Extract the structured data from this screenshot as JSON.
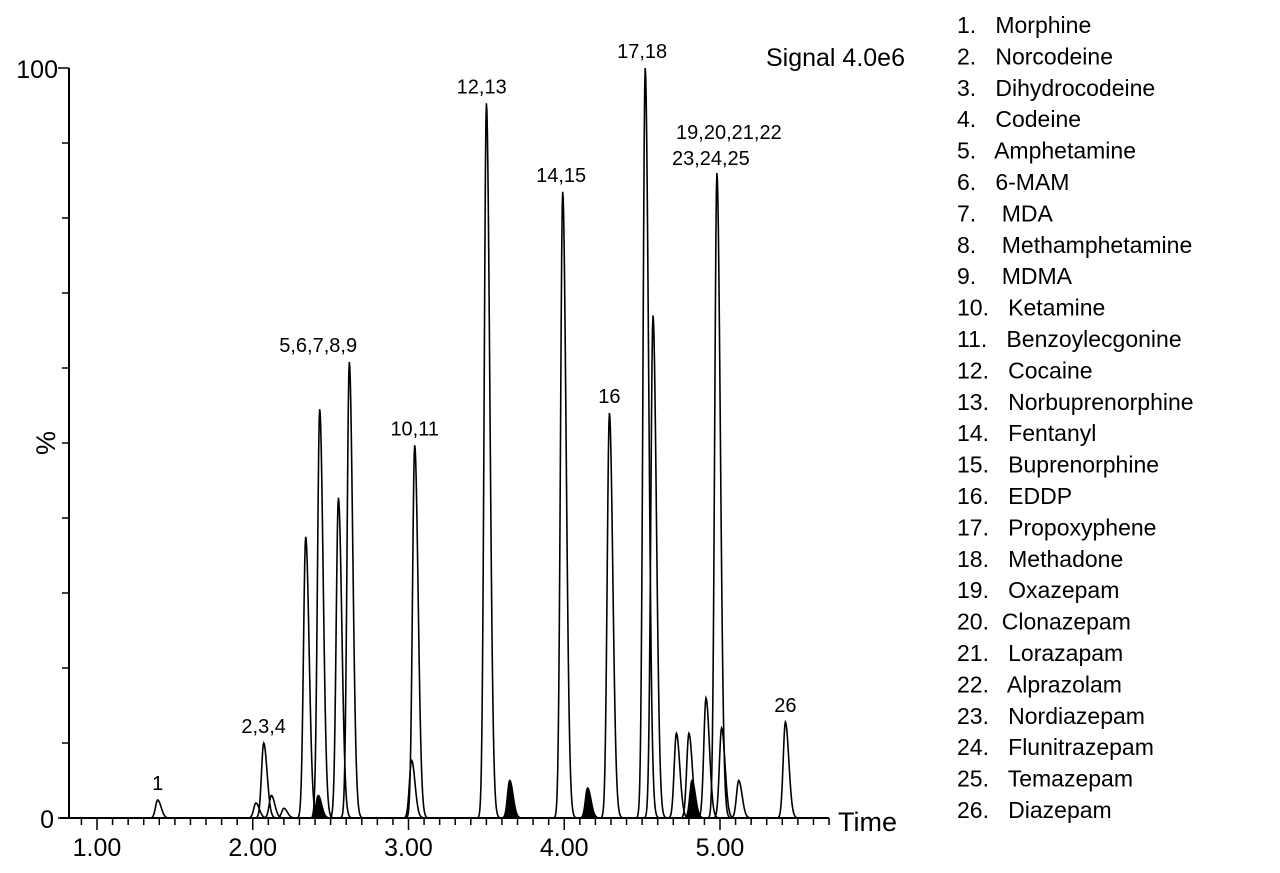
{
  "chart_data": {
    "type": "line",
    "title": "",
    "signal_label": "Signal 4.0e6",
    "xlabel": "Time",
    "ylabel": "%",
    "xlim": [
      0.8,
      5.7
    ],
    "ylim": [
      0,
      100
    ],
    "x_tick_labels": [
      "1.00",
      "2.00",
      "3.00",
      "4.00",
      "5.00"
    ],
    "x_tick_values": [
      1.0,
      2.0,
      3.0,
      4.0,
      5.0
    ],
    "y_tick_labels": [
      "0",
      "%",
      "100"
    ],
    "grid": false,
    "line_color": "#000000",
    "peaks": [
      {
        "x": 1.39,
        "y": 2.4
      },
      {
        "x": 2.02,
        "y": 2.0
      },
      {
        "x": 2.07,
        "y": 10.0
      },
      {
        "x": 2.12,
        "y": 3.0
      },
      {
        "x": 2.2,
        "y": 1.3
      },
      {
        "x": 2.34,
        "y": 37.5
      },
      {
        "x": 2.42,
        "y": 3.0,
        "filled": true
      },
      {
        "x": 2.43,
        "y": 54.5
      },
      {
        "x": 2.55,
        "y": 42.7
      },
      {
        "x": 2.62,
        "y": 60.8
      },
      {
        "x": 3.02,
        "y": 7.7
      },
      {
        "x": 3.04,
        "y": 49.7
      },
      {
        "x": 3.5,
        "y": 95.3
      },
      {
        "x": 3.65,
        "y": 5.0,
        "filled": true
      },
      {
        "x": 3.99,
        "y": 83.5
      },
      {
        "x": 4.15,
        "y": 4.0,
        "filled": true
      },
      {
        "x": 4.29,
        "y": 54.0
      },
      {
        "x": 4.52,
        "y": 100.0
      },
      {
        "x": 4.57,
        "y": 67.0
      },
      {
        "x": 4.72,
        "y": 11.3
      },
      {
        "x": 4.8,
        "y": 11.3
      },
      {
        "x": 4.82,
        "y": 5.0,
        "filled": true
      },
      {
        "x": 4.91,
        "y": 16.0
      },
      {
        "x": 4.98,
        "y": 86.0
      },
      {
        "x": 5.01,
        "y": 12.0
      },
      {
        "x": 5.12,
        "y": 5.0
      },
      {
        "x": 5.42,
        "y": 12.8
      }
    ],
    "peak_labels": [
      {
        "text": "1",
        "x": 1.39,
        "y": 2.4
      },
      {
        "text": "2,3,4",
        "x": 2.07,
        "y": 10.0
      },
      {
        "text": "5,6,7,8,9",
        "x": 2.42,
        "y": 60.8
      },
      {
        "text": "10,11",
        "x": 3.04,
        "y": 49.7
      },
      {
        "text": "12,13",
        "x": 3.47,
        "y": 95.3
      },
      {
        "text": "14,15",
        "x": 3.98,
        "y": 83.5
      },
      {
        "text": "16",
        "x": 4.29,
        "y": 54.0
      },
      {
        "text": "17,18",
        "x": 4.5,
        "y": 100.0
      },
      {
        "text": "23,24,25",
        "x": 4.9,
        "y": 86.0
      },
      {
        "text": "19,20,21,22",
        "x": 4.95,
        "y": 89.3
      },
      {
        "text": "26",
        "x": 5.42,
        "y": 12.8
      }
    ],
    "legend": [
      "1.   Morphine",
      "2.   Norcodeine",
      "3.   Dihydrocodeine",
      "4.   Codeine",
      "5.   Amphetamine",
      "6.   6-MAM",
      "7.    MDA",
      "8.    Methamphetamine",
      "9.    MDMA",
      "10.   Ketamine",
      "11.   Benzoylecgonine",
      "12.   Cocaine",
      "13.   Norbuprenorphine",
      "14.   Fentanyl",
      "15.   Buprenorphine",
      "16.   EDDP",
      "17.   Propoxyphene",
      "18.   Methadone",
      "19.   Oxazepam",
      "20.  Clonazepam",
      "21.   Lorazapam",
      "22.   Alprazolam",
      "23.   Nordiazepam",
      "24.   Flunitrazepam",
      "25.   Temazepam",
      "26.   Diazepam"
    ],
    "legend_placement": "right"
  }
}
